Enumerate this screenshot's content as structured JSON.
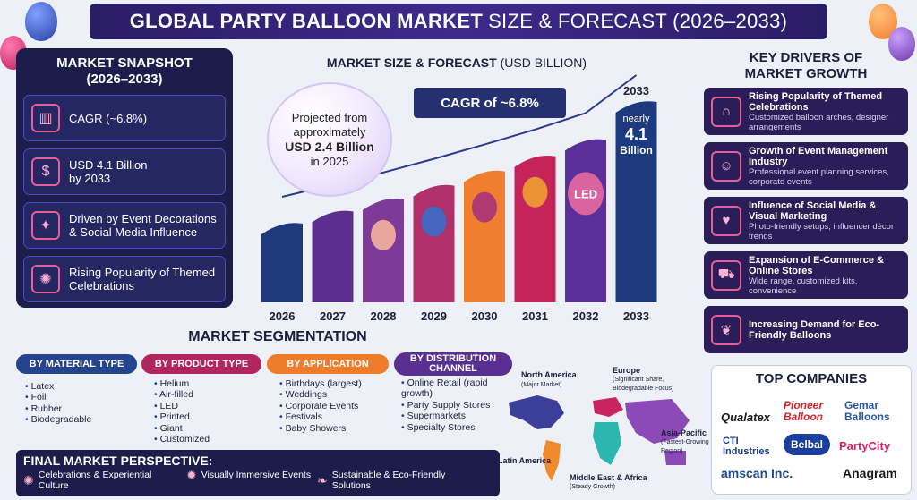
{
  "header": {
    "title_bold": "GLOBAL PARTY BALLOON MARKET",
    "title_rest": "SIZE & FORECAST (2026–2033)"
  },
  "snapshot": {
    "title": "MARKET SNAPSHOT\n(2026–2033)",
    "cards": [
      {
        "icon": "growth-chart-icon",
        "text": "CAGR (~6.8%)"
      },
      {
        "icon": "dollar-icon",
        "text": "USD 4.1 Billion",
        "sub": "by 2033"
      },
      {
        "icon": "event-decor-icon",
        "text": "Driven by Event Decorations & Social Media Influence"
      },
      {
        "icon": "party-popper-icon",
        "text": "Rising Popularity of Themed Celebrations"
      }
    ]
  },
  "chart_data": {
    "type": "bar",
    "title": "MARKET SIZE & FORECAST",
    "title_unit": "(USD BILLION)",
    "categories": [
      "2026",
      "2027",
      "2028",
      "2029",
      "2030",
      "2031",
      "2032",
      "2033"
    ],
    "values": [
      2.4,
      2.57,
      2.74,
      2.93,
      3.13,
      3.34,
      3.57,
      4.1
    ],
    "colors": [
      "#1f3a7a",
      "#5c2f8e",
      "#7d3a96",
      "#b0306c",
      "#ef7f2f",
      "#c4245a",
      "#5a2f9a",
      "#1e3a7e"
    ],
    "bubble": {
      "line1": "Projected from",
      "line2": "approximately",
      "bold": "USD 2.4 Billion",
      "line3": "in 2025"
    },
    "cagr_label": "CAGR of ~6.8%",
    "peak_year": "2033",
    "peak_label_1": "nearly",
    "peak_label_2": "4.1",
    "peak_label_3": "Billion",
    "led_label": "LED"
  },
  "drivers": {
    "title": "KEY DRIVERS OF\nMARKET GROWTH",
    "items": [
      {
        "icon": "balloon-arch-icon",
        "h": "Rising Popularity of Themed Celebrations",
        "s": "Customized balloon arches, designer arrangements"
      },
      {
        "icon": "event-team-icon",
        "h": "Growth of Event Management Industry",
        "s": "Professional event planning services, corporate events"
      },
      {
        "icon": "social-media-icon",
        "h": "Influence of Social Media & Visual Marketing",
        "s": "Photo-friendly setups, influencer décor trends"
      },
      {
        "icon": "shopping-cart-icon",
        "h": "Expansion of E-Commerce & Online Stores",
        "s": "Wide range, customized kits, convenience"
      },
      {
        "icon": "eco-hands-icon",
        "h": "Increasing Demand for Eco-Friendly Balloons",
        "s": ""
      }
    ]
  },
  "segmentation": {
    "title": "MARKET SEGMENTATION",
    "groups": [
      {
        "label": "BY MATERIAL TYPE",
        "color": "#24448f",
        "items": [
          "Latex",
          "Foil",
          "Rubber",
          "Biodegradable"
        ]
      },
      {
        "label": "BY PRODUCT TYPE",
        "color": "#b2265f",
        "items": [
          "Helium",
          "Air-filled",
          "LED",
          "Printed",
          "Giant",
          "Customized"
        ]
      },
      {
        "label": "BY APPLICATION",
        "color": "#ee7c2a",
        "items": [
          "Birthdays (largest)",
          "Weddings",
          "Corporate Events",
          "Festivals",
          "Baby Showers"
        ]
      },
      {
        "label": "BY DISTRIBUTION CHANNEL",
        "color": "#5a2f92",
        "items": [
          "Online Retail (rapid growth)",
          "Party Supply Stores",
          "Supermarkets",
          "Specialty Stores"
        ]
      }
    ]
  },
  "map": {
    "regions": [
      {
        "name": "North America",
        "note": "(Major Market)"
      },
      {
        "name": "Europe",
        "note": "(Significant Share, Biodegradable Focus)"
      },
      {
        "name": "Asia-Pacific",
        "note": "(Fastest-Growing Region)"
      },
      {
        "name": "Latin America",
        "note": ""
      },
      {
        "name": "Middle East & Africa",
        "note": "(Steady Growth)"
      }
    ]
  },
  "companies": {
    "title": "TOP COMPANIES",
    "logos": [
      {
        "name": "Qualatex",
        "color": "#1a1a1a"
      },
      {
        "name": "Pioneer Balloon",
        "color": "#d6252a"
      },
      {
        "name": "Gemar Balloons",
        "color": "#2a56a8"
      },
      {
        "name": "CTI Industries",
        "color": "#1a3a8a"
      },
      {
        "name": "Belbal",
        "color": "#1b3f9e"
      },
      {
        "name": "PartyCity",
        "color": "#d81f6a"
      },
      {
        "name": "amscan Inc.",
        "color": "#1f4a8e"
      },
      {
        "name": "Anagram",
        "color": "#1a1a1a"
      }
    ]
  },
  "final": {
    "title": "FINAL MARKET PERSPECTIVE:",
    "items": [
      {
        "icon": "celebration-icon",
        "text": "Celebrations & Experiential Culture"
      },
      {
        "icon": "immersive-icon",
        "text": "Visually Immersive Events"
      },
      {
        "icon": "eco-icon",
        "text": "Sustainable & Eco-Friendly Solutions"
      }
    ]
  }
}
